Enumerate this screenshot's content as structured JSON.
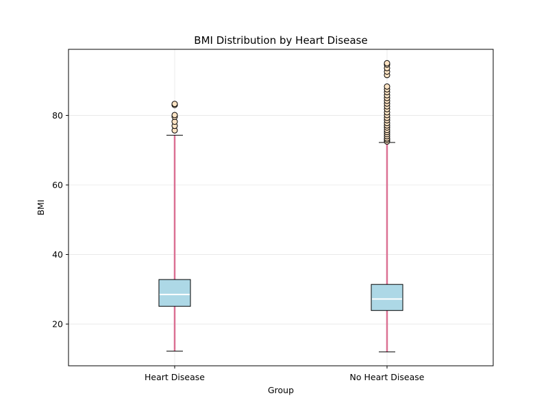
{
  "chart_data": {
    "type": "box",
    "title": "BMI Distribution by Heart Disease",
    "xlabel": "Group",
    "ylabel": "BMI",
    "categories": [
      "Heart Disease",
      "No Heart Disease"
    ],
    "ylim": [
      8,
      99
    ],
    "yticks": [
      20,
      40,
      60,
      80
    ],
    "grid": true,
    "boxes": [
      {
        "name": "Heart Disease",
        "whisker_low": 12.2,
        "q1": 25.1,
        "median": 28.5,
        "q3": 32.8,
        "whisker_high": 74.3,
        "outliers": [
          75.7,
          77.0,
          78.2,
          79.6,
          80.1,
          83.0,
          83.3
        ]
      },
      {
        "name": "No Heart Disease",
        "whisker_low": 12.0,
        "q1": 23.9,
        "median": 27.2,
        "q3": 31.4,
        "whisker_high": 72.2,
        "outliers": [
          72.5,
          73.0,
          73.4,
          74.0,
          74.6,
          75.2,
          75.8,
          76.5,
          77.1,
          77.8,
          78.6,
          79.3,
          80.1,
          80.9,
          81.8,
          82.6,
          83.4,
          84.2,
          85.0,
          85.8,
          86.7,
          87.5,
          88.3,
          91.6,
          92.6,
          93.6,
          94.6,
          95.0
        ]
      }
    ],
    "colors": {
      "box_fill": "#add8e6",
      "box_edge": "#000000",
      "median": "#ffffff",
      "whisker": "#db7093",
      "cap": "#000000",
      "outlier_fill": "#ffe4c4",
      "outlier_edge": "#000000",
      "grid": "#e6e6e6"
    }
  }
}
